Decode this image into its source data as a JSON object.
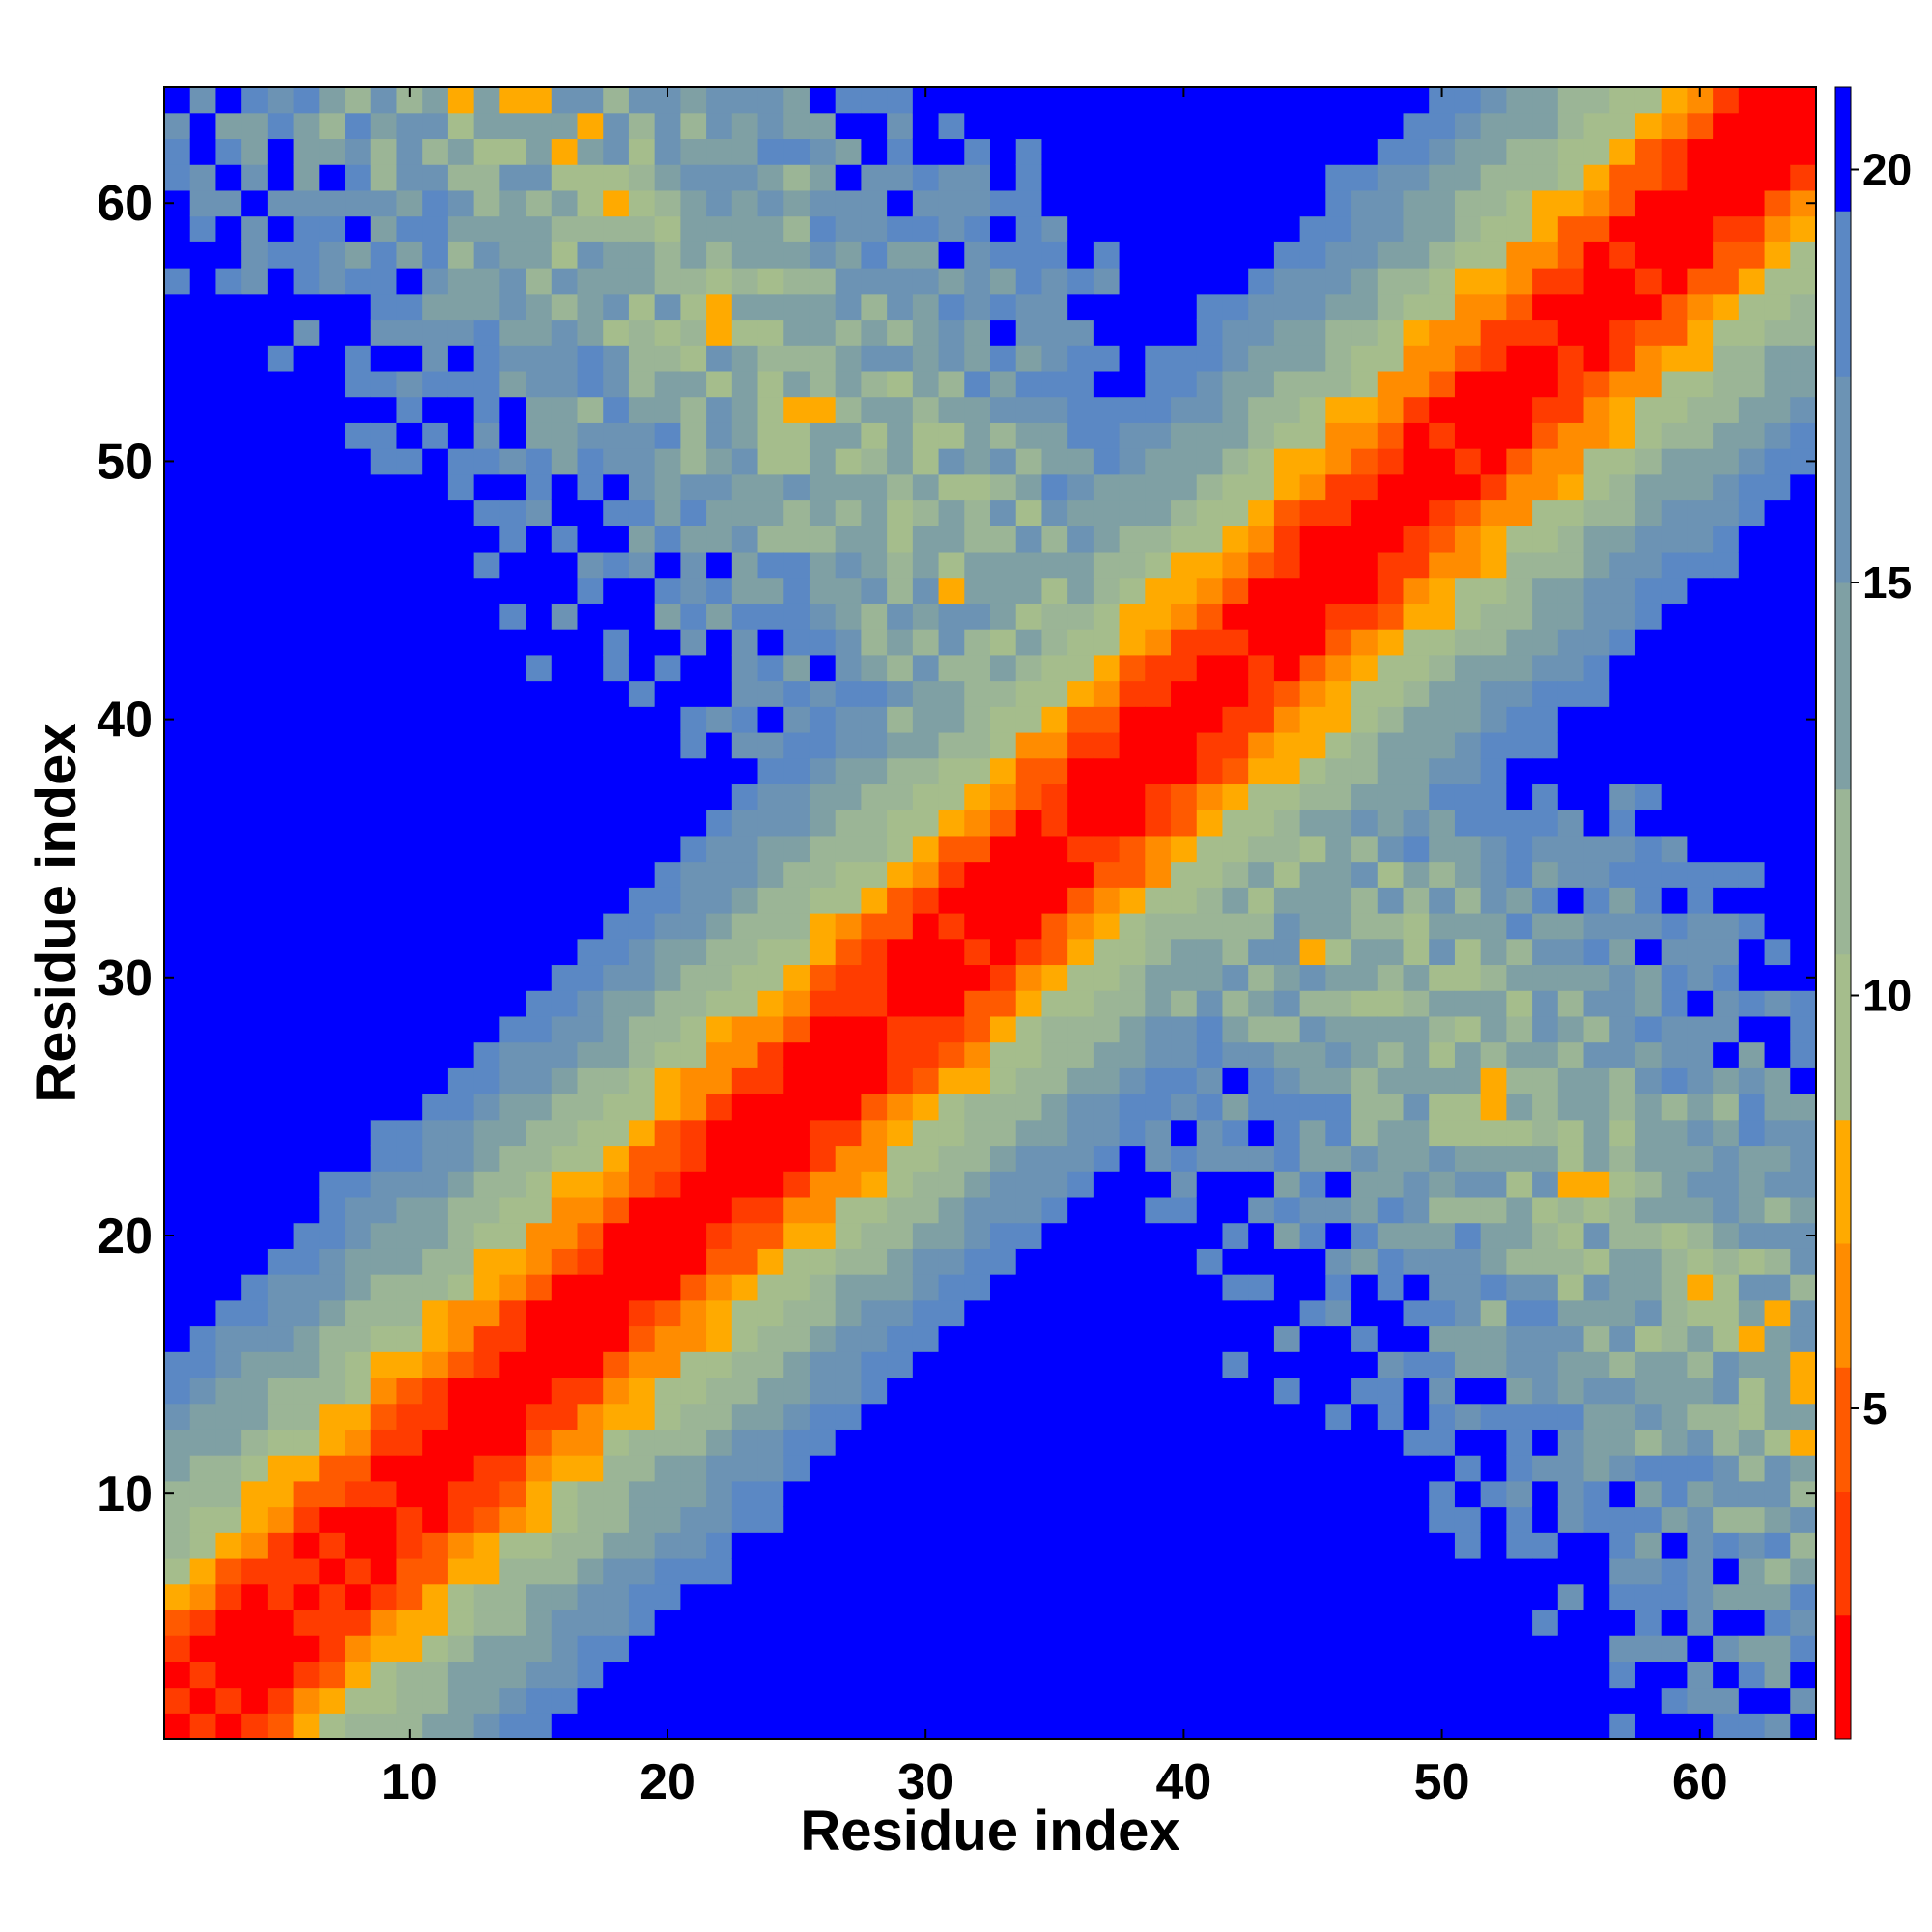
{
  "chart_data": {
    "type": "heatmap",
    "title": "",
    "xlabel": "Residue index",
    "ylabel": "Residue index",
    "n_residues": 64,
    "xlim": [
      1,
      64
    ],
    "ylim": [
      1,
      64
    ],
    "x_ticks": [
      10,
      20,
      30,
      40,
      50,
      60
    ],
    "y_ticks": [
      10,
      20,
      30,
      40,
      50,
      60
    ],
    "colorbar": {
      "range": [
        1,
        21
      ],
      "ticks": [
        5,
        10,
        15,
        20
      ],
      "levels": [
        {
          "upto": 2.5,
          "color": "#ff0000"
        },
        {
          "upto": 4,
          "color": "#ff3c00"
        },
        {
          "upto": 5.5,
          "color": "#ff5a00"
        },
        {
          "upto": 7,
          "color": "#ff8c00"
        },
        {
          "upto": 8.5,
          "color": "#ffaa00"
        },
        {
          "upto": 10.5,
          "color": "#a5bd8c"
        },
        {
          "upto": 12.5,
          "color": "#9bb596"
        },
        {
          "upto": 15,
          "color": "#7fa0a4"
        },
        {
          "upto": 17.5,
          "color": "#6c93b4"
        },
        {
          "upto": 19.5,
          "color": "#5b88c4"
        },
        {
          "upto": 21,
          "color": "#0000ff"
        }
      ]
    },
    "legend": "colorbar-right",
    "grid": false
  }
}
